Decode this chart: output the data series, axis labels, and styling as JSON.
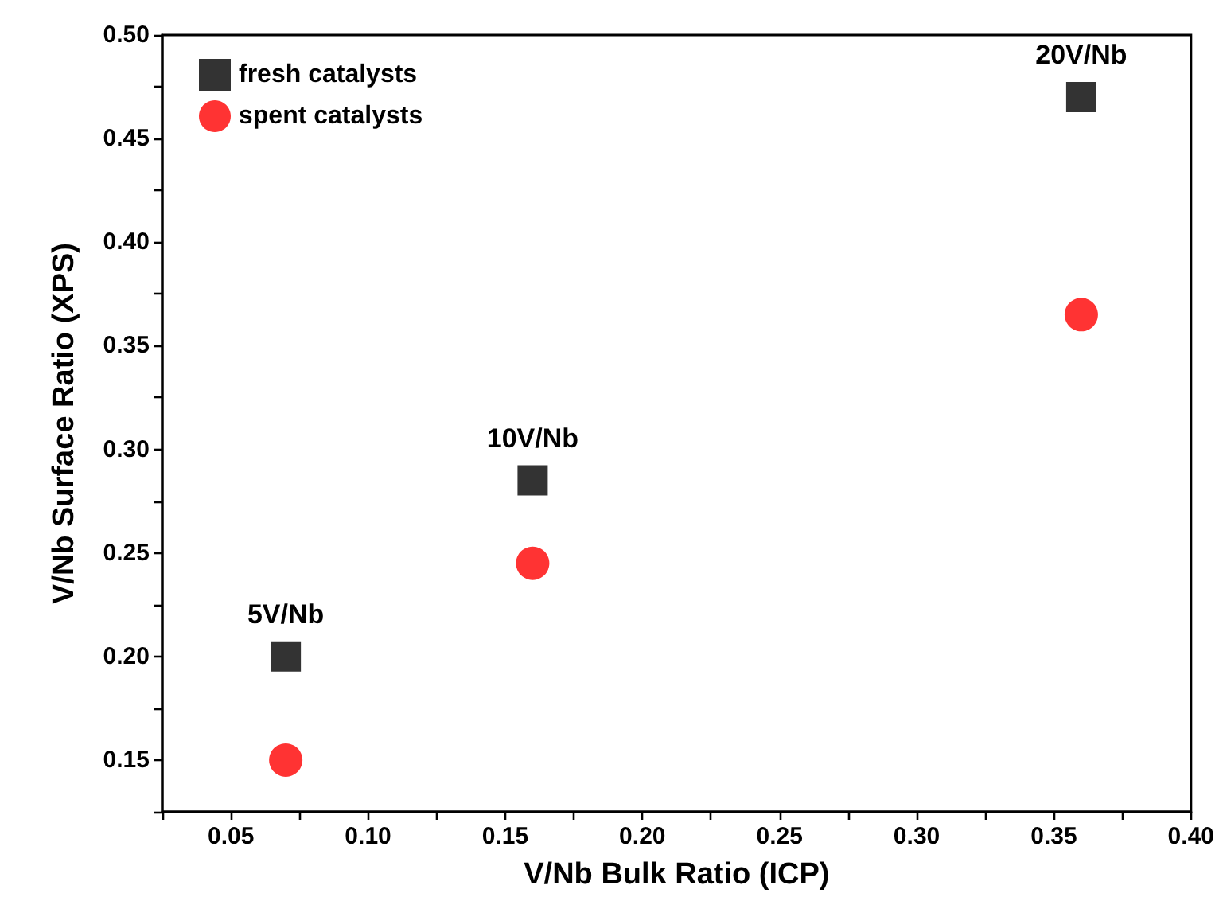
{
  "chart_data": {
    "type": "scatter",
    "xlabel": "V/Nb Bulk Ratio (ICP)",
    "ylabel": "V/Nb Surface Ratio (XPS)",
    "xlim": [
      0.025,
      0.4
    ],
    "ylim": [
      0.125,
      0.5
    ],
    "xticks": [
      {
        "value": 0.025,
        "label": null
      },
      {
        "value": 0.05,
        "label": "0.05"
      },
      {
        "value": 0.075,
        "label": null
      },
      {
        "value": 0.1,
        "label": "0.10"
      },
      {
        "value": 0.125,
        "label": null
      },
      {
        "value": 0.15,
        "label": "0.15"
      },
      {
        "value": 0.175,
        "label": null
      },
      {
        "value": 0.2,
        "label": "0.20"
      },
      {
        "value": 0.225,
        "label": null
      },
      {
        "value": 0.25,
        "label": "0.25"
      },
      {
        "value": 0.275,
        "label": null
      },
      {
        "value": 0.3,
        "label": "0.30"
      },
      {
        "value": 0.325,
        "label": null
      },
      {
        "value": 0.35,
        "label": "0.35"
      },
      {
        "value": 0.375,
        "label": null
      },
      {
        "value": 0.4,
        "label": "0.40"
      }
    ],
    "yticks": [
      {
        "value": 0.125,
        "label": null
      },
      {
        "value": 0.15,
        "label": "0.15"
      },
      {
        "value": 0.175,
        "label": null
      },
      {
        "value": 0.2,
        "label": "0.20"
      },
      {
        "value": 0.225,
        "label": null
      },
      {
        "value": 0.25,
        "label": "0.25"
      },
      {
        "value": 0.275,
        "label": null
      },
      {
        "value": 0.3,
        "label": "0.30"
      },
      {
        "value": 0.325,
        "label": null
      },
      {
        "value": 0.35,
        "label": "0.35"
      },
      {
        "value": 0.375,
        "label": null
      },
      {
        "value": 0.4,
        "label": "0.40"
      },
      {
        "value": 0.425,
        "label": null
      },
      {
        "value": 0.45,
        "label": "0.45"
      },
      {
        "value": 0.475,
        "label": null
      },
      {
        "value": 0.5,
        "label": "0.50"
      }
    ],
    "x": [
      0.07,
      0.16,
      0.36
    ],
    "series": [
      {
        "name": "fresh catalysts",
        "color": "#000000",
        "marker": "square",
        "values": [
          0.2,
          0.285,
          0.47
        ]
      },
      {
        "name": "spent catalysts",
        "color": "#ff0000",
        "marker": "circle",
        "values": [
          0.15,
          0.245,
          0.365
        ]
      }
    ],
    "annotations": [
      {
        "text": "5V/Nb",
        "x": 0.07,
        "y": 0.2
      },
      {
        "text": "10V/Nb",
        "x": 0.16,
        "y": 0.285
      },
      {
        "text": "20V/Nb",
        "x": 0.36,
        "y": 0.47
      }
    ],
    "legend": "top left",
    "grid": false
  }
}
